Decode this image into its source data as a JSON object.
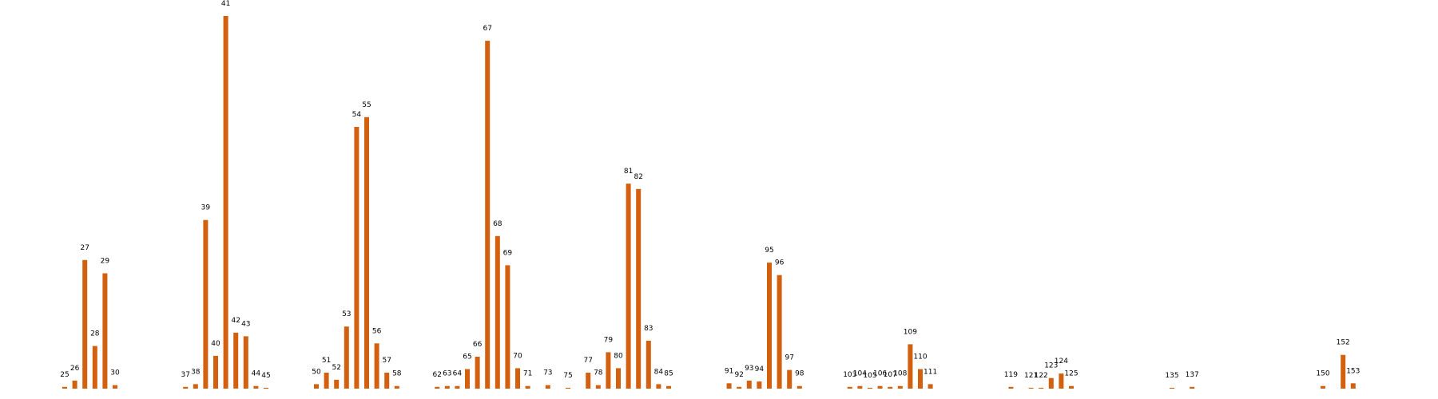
{
  "chart_data": {
    "type": "bar",
    "title": "",
    "xlabel": "",
    "ylabel": "",
    "bar_color": "#d2600e",
    "grid": false,
    "legend": "none",
    "ylim": [
      0,
      42
    ],
    "x": [
      25,
      26,
      27,
      28,
      29,
      30,
      37,
      38,
      39,
      40,
      41,
      42,
      43,
      44,
      45,
      50,
      51,
      52,
      53,
      54,
      55,
      56,
      57,
      58,
      62,
      63,
      64,
      65,
      66,
      67,
      68,
      69,
      70,
      71,
      73,
      75,
      77,
      78,
      79,
      80,
      81,
      82,
      83,
      84,
      85,
      91,
      92,
      93,
      94,
      95,
      96,
      97,
      98,
      103,
      104,
      105,
      106,
      107,
      108,
      109,
      110,
      111,
      119,
      121,
      122,
      123,
      124,
      125,
      135,
      137,
      150,
      152,
      153
    ],
    "values": [
      0.2,
      0.9,
      14.5,
      4.8,
      13.0,
      0.4,
      0.2,
      0.5,
      19.0,
      3.7,
      42.0,
      6.3,
      5.9,
      0.3,
      0.1,
      0.5,
      1.8,
      1.0,
      7.0,
      29.5,
      30.6,
      5.1,
      1.8,
      0.3,
      0.2,
      0.3,
      0.3,
      2.2,
      3.6,
      39.2,
      17.2,
      13.9,
      2.3,
      0.3,
      0.4,
      0.1,
      1.8,
      0.4,
      4.1,
      2.3,
      23.1,
      22.5,
      5.4,
      0.5,
      0.3,
      0.6,
      0.2,
      0.9,
      0.8,
      14.2,
      12.8,
      2.1,
      0.3,
      0.2,
      0.3,
      0.1,
      0.3,
      0.2,
      0.3,
      5.0,
      2.2,
      0.5,
      0.2,
      0.1,
      0.1,
      1.2,
      1.7,
      0.3,
      0.1,
      0.2,
      0.3,
      3.8,
      0.6
    ],
    "labels": [
      "25",
      "26",
      "27",
      "28",
      "29",
      "30",
      "37",
      "38",
      "39",
      "40",
      "41",
      "42",
      "43",
      "44",
      "45",
      "50",
      "51",
      "52",
      "53",
      "54",
      "55",
      "56",
      "57",
      "58",
      "62",
      "63",
      "64",
      "65",
      "66",
      "67",
      "68",
      "69",
      "70",
      "71",
      "73",
      "75",
      "77",
      "78",
      "79",
      "80",
      "81",
      "82",
      "83",
      "84",
      "85",
      "91",
      "92",
      "93",
      "94",
      "95",
      "96",
      "97",
      "98",
      "103",
      "104",
      "105",
      "106",
      "107",
      "108",
      "109",
      "110",
      "111",
      "119",
      "121",
      "122",
      "123",
      "124",
      "125",
      "135",
      "137",
      "150",
      "152",
      "153"
    ]
  }
}
